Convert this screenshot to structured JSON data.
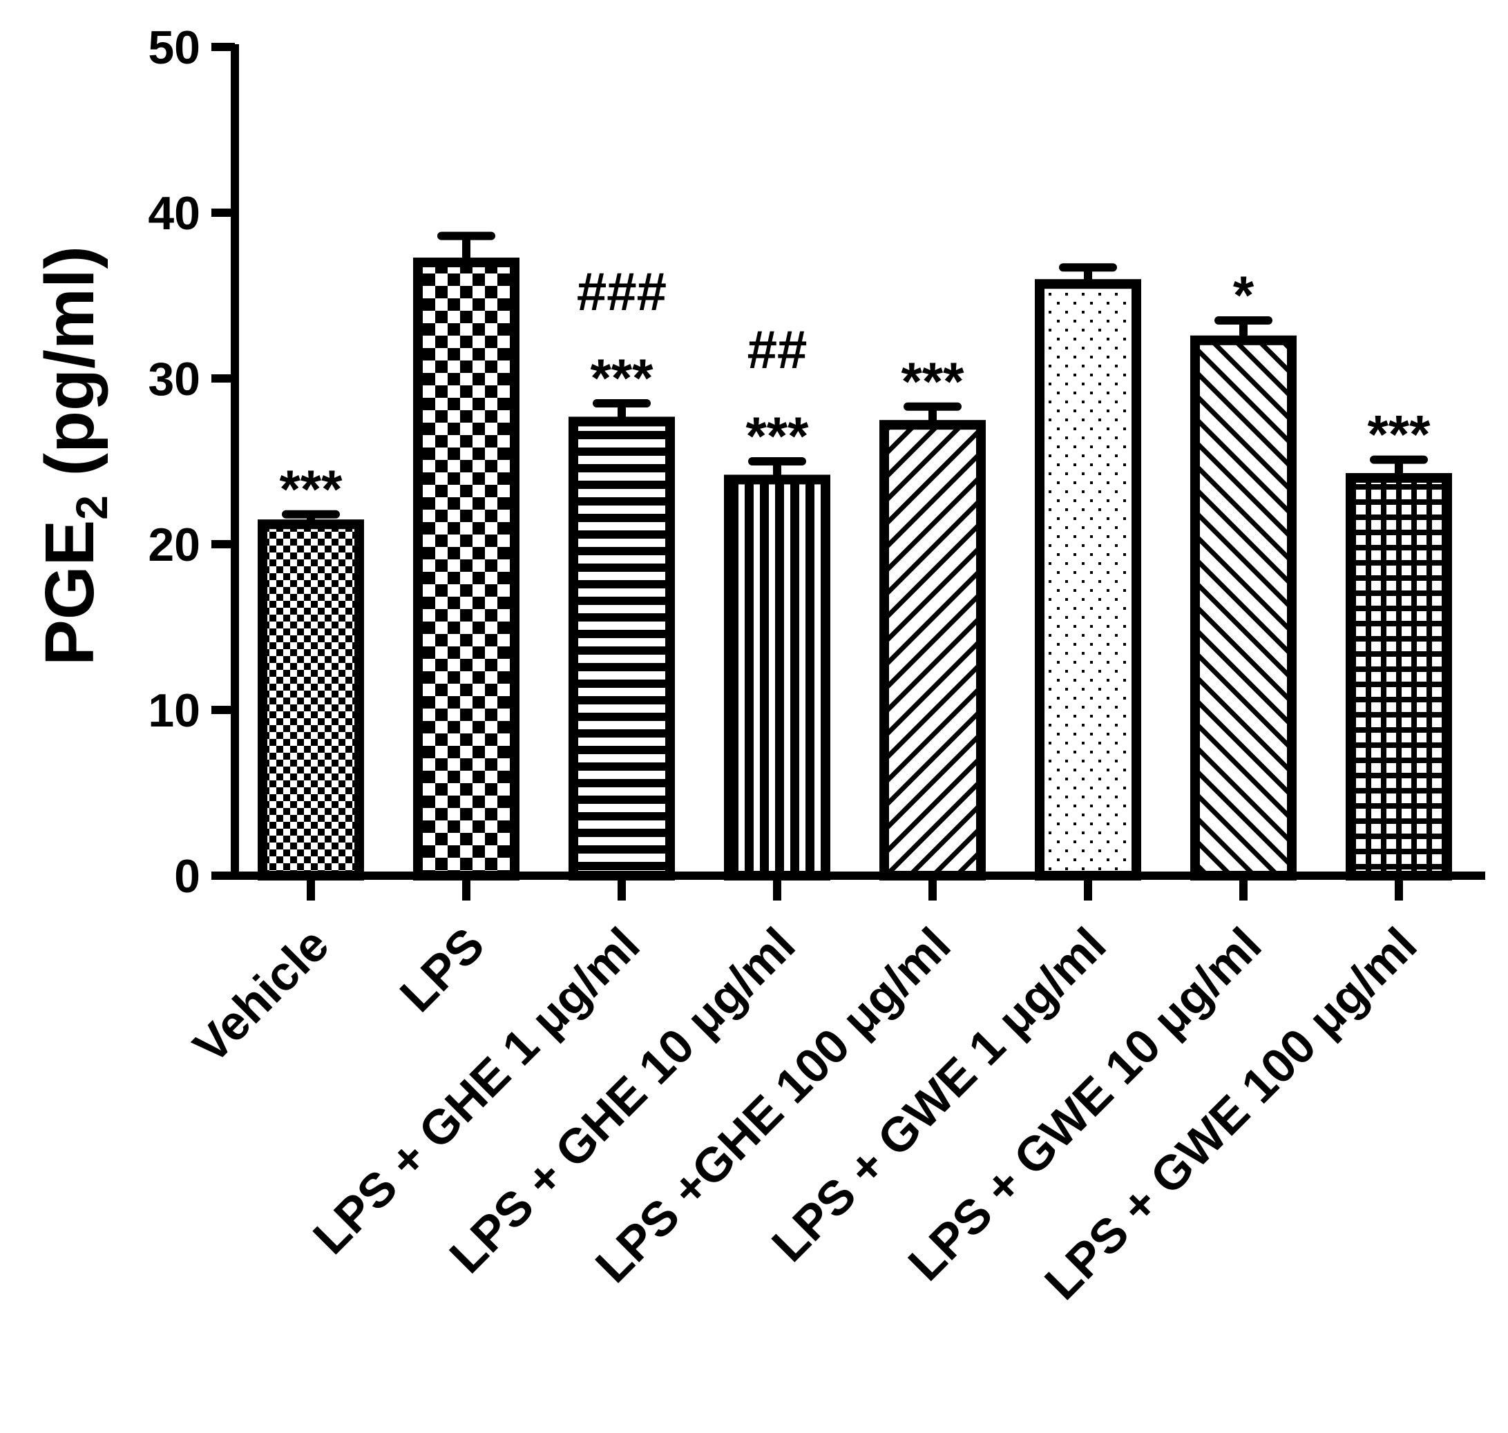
{
  "chart_data": {
    "type": "bar",
    "title": "",
    "xlabel": "",
    "ylabel": "PGE",
    "ylabel_subscript": "2",
    "ylabel_unit": " (pg/ml)",
    "ylim": [
      0,
      50
    ],
    "yticks": [
      "0",
      "10",
      "20",
      "30",
      "40",
      "50"
    ],
    "grid": false,
    "categories": [
      "Vehicle",
      "LPS",
      "LPS + GHE 1 μg/ml",
      "LPS + GHE 10 μg/ml",
      "LPS +GHE 100 μg/ml",
      "LPS + GWE 1 μg/ml",
      "LPS + GWE 10 μg/ml",
      "LPS + GWE 100 μg/ml"
    ],
    "values": [
      21.2,
      37.0,
      27.4,
      23.9,
      27.2,
      35.7,
      32.3,
      24.0
    ],
    "errors": [
      0.6,
      1.6,
      1.1,
      1.1,
      1.1,
      1.0,
      1.2,
      1.1
    ],
    "patterns": [
      "fine-check",
      "check",
      "h-lines",
      "v-lines",
      "diag-up",
      "dots",
      "diag-down",
      "grid"
    ],
    "annotations": [
      [
        "***"
      ],
      [],
      [
        "***",
        "###"
      ],
      [
        "***",
        "##"
      ],
      [
        "***"
      ],
      [],
      [
        "*"
      ],
      [
        "***"
      ]
    ]
  }
}
